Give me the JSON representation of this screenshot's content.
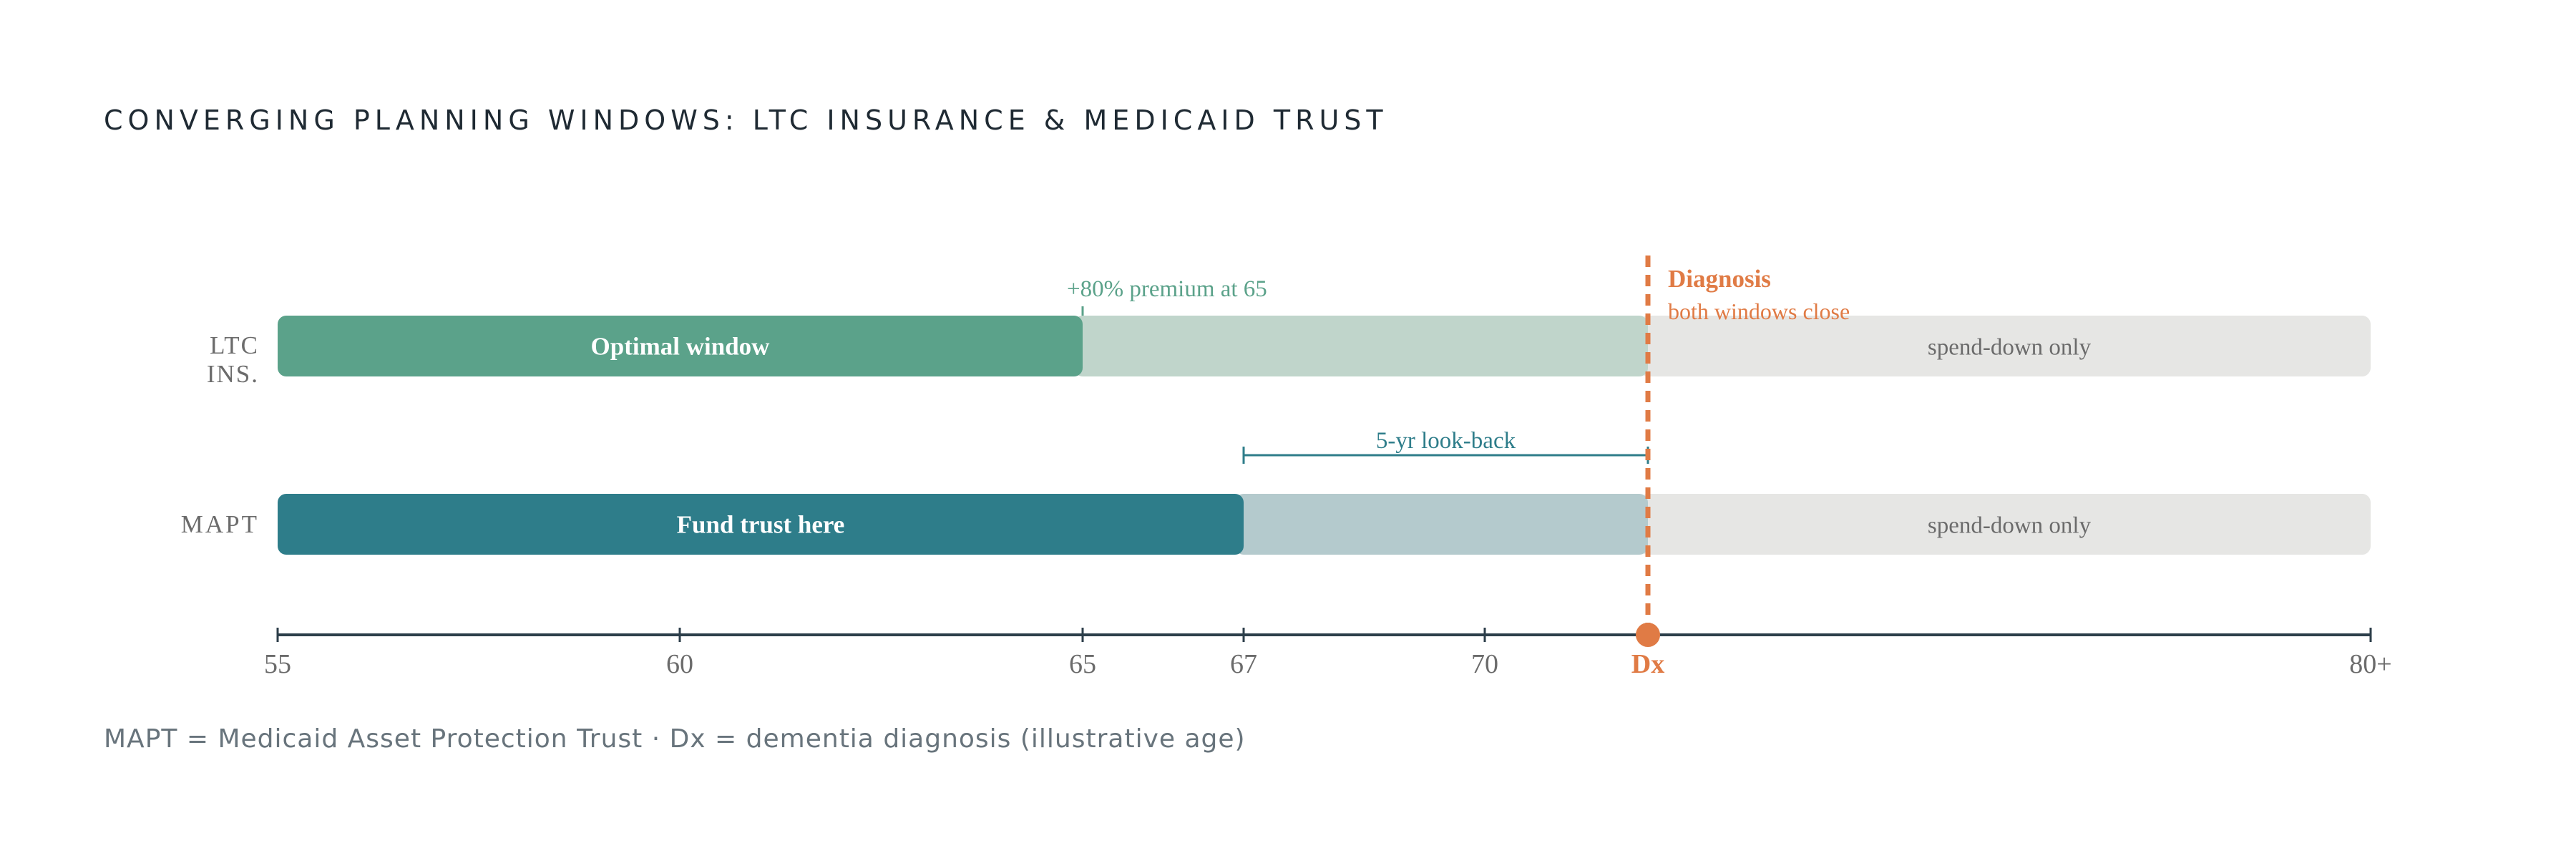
{
  "title": "CONVERGING PLANNING WINDOWS: LTC INSURANCE & MEDICAID TRUST",
  "footnote": "MAPT = Medicaid Asset Protection Trust  ·  Dx = dementia diagnosis (illustrative age)",
  "colors": {
    "ltc_optimal": "#5ba28a",
    "ltc_late": "#c0d5cb",
    "mapt_fund": "#2e7d8a",
    "mapt_lookback": "#b4cacd",
    "spend_down": "#e6e6e4",
    "diagnosis": "#e07b45",
    "axis": "#2c3e4a",
    "tick_label": "#6b6b6b"
  },
  "axis": {
    "ticks": [
      {
        "label": "55",
        "value": 55
      },
      {
        "label": "60",
        "value": 60
      },
      {
        "label": "65",
        "value": 65
      },
      {
        "label": "67",
        "value": 67
      },
      {
        "label": "70",
        "value": 70
      },
      {
        "label": "Dx",
        "value": 72,
        "highlight": true
      },
      {
        "label": "80+",
        "value": 81
      }
    ],
    "min": 55,
    "max": 81
  },
  "rows": {
    "ltc": {
      "label_line1": "LTC",
      "label_line2": "INS.",
      "segments": [
        {
          "from": 55,
          "to": 65,
          "label": "Optimal window",
          "color_key": "ltc_optimal",
          "bold": true
        },
        {
          "from": 65,
          "to": 72,
          "label": "",
          "color_key": "ltc_late"
        },
        {
          "from": 72,
          "to": 81,
          "label": "spend-down only",
          "color_key": "spend_down"
        }
      ],
      "marker": {
        "at": 65,
        "label": "+80% premium at 65"
      }
    },
    "mapt": {
      "label": "MAPT",
      "segments": [
        {
          "from": 55,
          "to": 67,
          "label": "Fund trust here",
          "color_key": "mapt_fund",
          "bold": true
        },
        {
          "from": 67,
          "to": 72,
          "label": "",
          "color_key": "mapt_lookback"
        },
        {
          "from": 72,
          "to": 81,
          "label": "spend-down only",
          "color_key": "spend_down"
        }
      ],
      "lookback": {
        "from": 67,
        "to": 72,
        "label": "5-yr look-back"
      }
    }
  },
  "diagnosis": {
    "at": 72,
    "title": "Diagnosis",
    "subtitle": "both windows close"
  }
}
